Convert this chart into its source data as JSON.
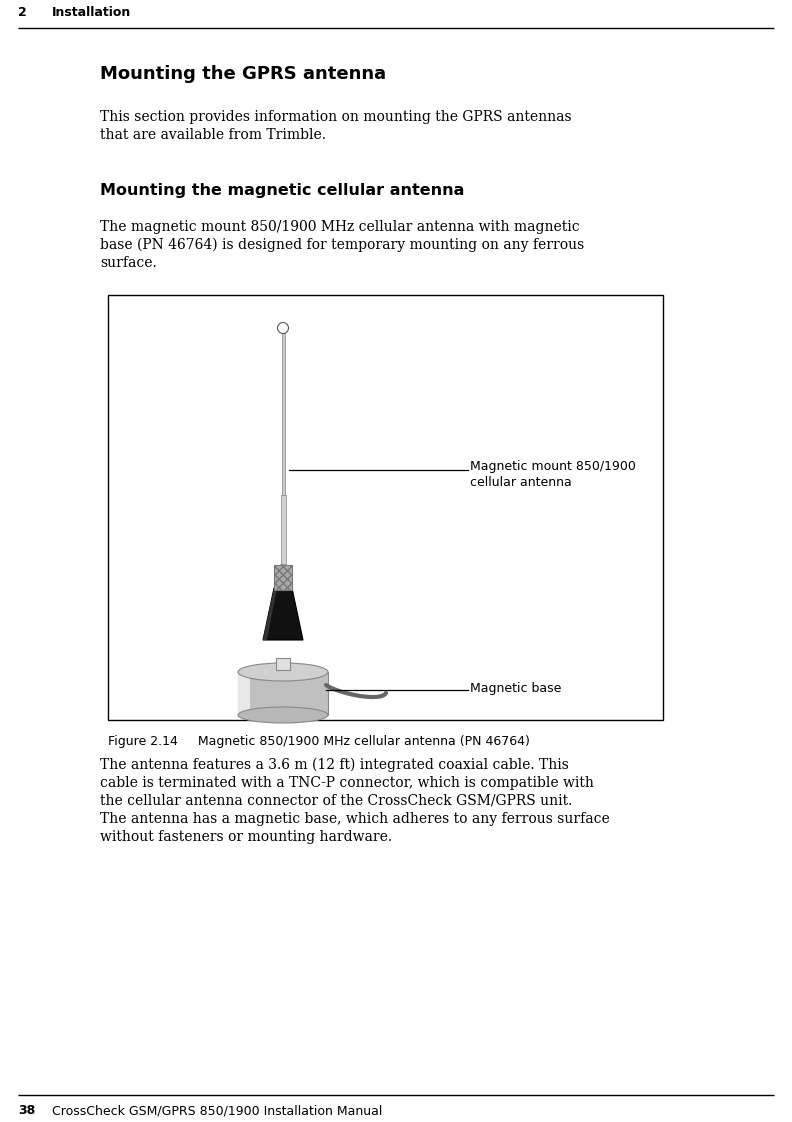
{
  "page_number": "2",
  "chapter_title": "Installation",
  "footer_number": "38",
  "footer_text": "CrossCheck GSM/GPRS 850/1900 Installation Manual",
  "section_title": "Mounting the GPRS antenna",
  "subsection_title": "Mounting the magnetic cellular antenna",
  "body_text_1a": "This section provides information on mounting the GPRS antennas",
  "body_text_1b": "that are available from Trimble.",
  "body_text_2a": "The magnetic mount 850/1900 MHz cellular antenna with magnetic",
  "body_text_2b": "base (PN 46764) is designed for temporary mounting on any ferrous",
  "body_text_2c": "surface.",
  "figure_caption": "Figure 2.14     Magnetic 850/1900 MHz cellular antenna (PN 46764)",
  "body_text_3a": "The antenna features a 3.6 m (12 ft) integrated coaxial cable. This",
  "body_text_3b": "cable is terminated with a TNC-P connector, which is compatible with",
  "body_text_3c": "the cellular antenna connector of the CrossCheck GSM/GPRS unit.",
  "body_text_3d": "The antenna has a magnetic base, which adheres to any ferrous surface",
  "body_text_3e": "without fasteners or mounting hardware.",
  "label_antenna_1": "Magnetic mount 850/1900",
  "label_antenna_2": "cellular antenna",
  "label_base": "Magnetic base",
  "bg_color": "#ffffff",
  "text_color": "#000000"
}
